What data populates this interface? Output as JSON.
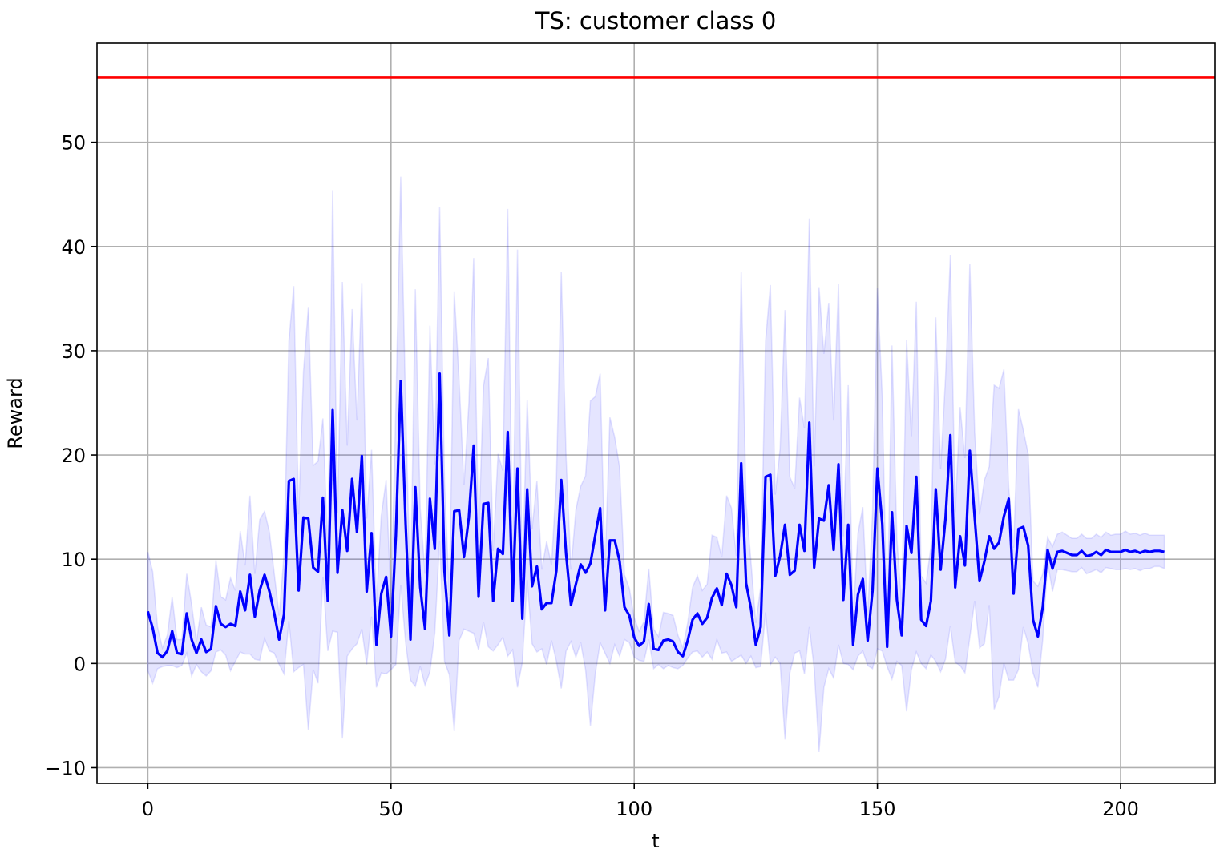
{
  "chart_data": {
    "type": "line",
    "title": "TS: customer class 0",
    "xlabel": "t",
    "ylabel": "Reward",
    "xlim": [
      -10.45,
      219.45
    ],
    "ylim": [
      -11.5,
      59.5
    ],
    "xticks": [
      0,
      50,
      100,
      150,
      200
    ],
    "xtick_labels": [
      "0",
      "50",
      "100",
      "150",
      "200"
    ],
    "yticks": [
      -10,
      0,
      10,
      20,
      30,
      40,
      50
    ],
    "ytick_labels": [
      "−10",
      "0",
      "10",
      "20",
      "30",
      "40",
      "50"
    ],
    "grid": true,
    "colors": {
      "mean": "#0000ff",
      "band": "#0000ff",
      "optimal": "#ff0000",
      "grid": "#b0b0b0"
    },
    "optimal_line": {
      "y": 56.2
    },
    "series": [
      {
        "x_start": 0,
        "mean": [
          5.0,
          3.4,
          1.0,
          0.6,
          1.2,
          3.1,
          1.0,
          0.9,
          4.8,
          2.3,
          1.0,
          2.3,
          1.1,
          1.4,
          5.5,
          3.8,
          3.5,
          3.8,
          3.6,
          6.9,
          5.1,
          8.5,
          4.5,
          7.0,
          8.5,
          6.9,
          4.8,
          2.3,
          4.7,
          17.5,
          17.7,
          7.0,
          14.0,
          13.9,
          9.2,
          8.8,
          15.9,
          6.0,
          24.3,
          8.7,
          14.7,
          10.8,
          17.7,
          12.6,
          19.9,
          6.9,
          12.5,
          1.8,
          6.7,
          8.3,
          2.6,
          12.3,
          27.1,
          13.4,
          2.3,
          16.9,
          7.3,
          3.3,
          15.8,
          11.0,
          27.8,
          8.8,
          2.7,
          14.6,
          14.7,
          10.2,
          14.0,
          20.9,
          6.4,
          15.3,
          15.4,
          6.0,
          11.0,
          10.5,
          22.2,
          6.0,
          18.7,
          4.3,
          16.7,
          7.4,
          9.3,
          5.2,
          5.8,
          5.8,
          8.9,
          17.6,
          10.5,
          5.6,
          7.6,
          9.5,
          8.7,
          9.6,
          12.3,
          14.9,
          5.1,
          11.8,
          11.8,
          9.8,
          5.4,
          4.6,
          2.5,
          1.7,
          2.1,
          5.7,
          1.4,
          1.3,
          2.2,
          2.3,
          2.1,
          1.1,
          0.7,
          2.2,
          4.2,
          4.8,
          3.8,
          4.4,
          6.3,
          7.2,
          5.6,
          8.6,
          7.5,
          5.4,
          19.2,
          7.7,
          5.3,
          1.8,
          3.5,
          17.9,
          18.1,
          8.4,
          10.3,
          13.3,
          8.5,
          8.9,
          13.3,
          10.8,
          23.1,
          9.2,
          13.9,
          13.7,
          17.1,
          10.9,
          19.1,
          6.1,
          13.3,
          1.8,
          6.6,
          8.1,
          2.2,
          7.0,
          18.7,
          13.4,
          1.6,
          14.5,
          6.1,
          2.7,
          13.2,
          10.6,
          17.9,
          4.2,
          3.6,
          6.0,
          16.7,
          9.0,
          13.9,
          21.9,
          7.3,
          12.2,
          9.4,
          20.4,
          14.0,
          7.9,
          9.8,
          12.2,
          11.0,
          11.6,
          14.1,
          15.8,
          6.7,
          12.9,
          13.1,
          11.3,
          4.2,
          2.6,
          5.4,
          10.9,
          9.1,
          10.7,
          10.8,
          10.6,
          10.4,
          10.4,
          10.8,
          10.3,
          10.4,
          10.7,
          10.4,
          10.9,
          10.7,
          10.7,
          10.7,
          10.9,
          10.7,
          10.8,
          10.6,
          10.8,
          10.7,
          10.8,
          10.8,
          10.7
        ],
        "upper": [
          10.7,
          8.8,
          3.5,
          1.5,
          2.7,
          6.4,
          2.3,
          2.3,
          8.6,
          5.7,
          2.1,
          5.4,
          3.7,
          3.5,
          9.9,
          6.4,
          6.1,
          8.2,
          7.0,
          12.7,
          9.4,
          16.1,
          8.6,
          13.8,
          14.6,
          12.6,
          8.6,
          4.6,
          10.4,
          30.9,
          36.2,
          14.3,
          28.0,
          34.2,
          19.0,
          19.4,
          23.5,
          10.8,
          45.4,
          14.4,
          36.6,
          20.9,
          34.0,
          23.3,
          36.5,
          13.9,
          20.5,
          5.9,
          14.2,
          17.6,
          5.8,
          24.7,
          46.7,
          24.8,
          6.2,
          35.9,
          14.9,
          8.6,
          32.4,
          19.1,
          43.8,
          17.4,
          6.5,
          35.7,
          27.2,
          17.1,
          24.9,
          38.9,
          11.6,
          26.6,
          29.3,
          10.8,
          20.1,
          18.5,
          43.6,
          10.6,
          39.7,
          8.4,
          25.3,
          12.9,
          17.5,
          9.0,
          11.7,
          9.4,
          17.6,
          37.6,
          19.8,
          9.0,
          14.7,
          17.0,
          18.0,
          25.2,
          25.6,
          27.8,
          9.2,
          23.6,
          21.7,
          18.8,
          8.5,
          7.2,
          4.4,
          3.1,
          4.0,
          9.1,
          3.3,
          2.6,
          4.9,
          4.8,
          4.6,
          2.7,
          1.5,
          3.9,
          7.3,
          8.4,
          7.0,
          7.6,
          12.3,
          12.1,
          10.2,
          16.1,
          14.9,
          10.3,
          37.6,
          15.4,
          9.8,
          3.9,
          7.3,
          30.9,
          36.3,
          16.2,
          20.6,
          33.9,
          17.9,
          16.8,
          25.5,
          22.6,
          42.7,
          18.9,
          36.1,
          29.7,
          34.6,
          23.3,
          36.4,
          12.2,
          26.7,
          4.3,
          12.5,
          15.0,
          4.6,
          14.5,
          36.0,
          25.6,
          3.5,
          30.5,
          12.0,
          5.6,
          31.0,
          21.8,
          34.7,
          8.4,
          7.7,
          11.2,
          33.2,
          18.7,
          27.4,
          39.2,
          14.5,
          24.6,
          19.7,
          38.3,
          22.2,
          14.3,
          17.6,
          18.9,
          26.7,
          26.4,
          28.2,
          16.9,
          11.1,
          24.4,
          22.4,
          20.1,
          7.9,
          7.4,
          8.6,
          12.1,
          11.2,
          12.4,
          12.6,
          12.3,
          12.0,
          12.0,
          12.4,
          12.0,
          12.0,
          12.4,
          12.1,
          12.6,
          12.3,
          12.4,
          12.4,
          12.7,
          12.4,
          12.5,
          12.3,
          12.5,
          12.3,
          12.3,
          12.3,
          12.3
        ],
        "lower": [
          -0.7,
          -1.9,
          -0.5,
          -0.3,
          -0.2,
          -0.2,
          -0.4,
          -0.2,
          1.0,
          -1.2,
          -0.1,
          -0.8,
          -1.2,
          -0.7,
          1.1,
          1.3,
          0.8,
          -0.7,
          0.2,
          1.1,
          0.9,
          0.9,
          0.4,
          0.3,
          2.4,
          1.2,
          1.0,
          -0.1,
          -1.0,
          4.1,
          -0.8,
          -0.4,
          -0.1,
          -6.4,
          -0.6,
          -1.9,
          8.3,
          1.2,
          3.1,
          3.0,
          -7.2,
          0.7,
          1.4,
          1.9,
          3.3,
          -0.1,
          4.5,
          -2.3,
          -0.9,
          -1.0,
          -0.6,
          -0.1,
          7.5,
          2.0,
          -1.6,
          -2.2,
          -0.3,
          -2.1,
          -0.8,
          2.9,
          11.8,
          0.2,
          -1.1,
          -6.5,
          2.2,
          3.3,
          3.1,
          2.9,
          1.3,
          4.0,
          1.6,
          1.2,
          1.8,
          2.5,
          0.7,
          1.3,
          -2.3,
          0.1,
          8.0,
          1.9,
          1.1,
          1.4,
          -0.1,
          2.2,
          0.2,
          -2.4,
          1.2,
          2.1,
          0.6,
          2.0,
          -0.6,
          -6.0,
          -1.0,
          2.0,
          1.0,
          0.0,
          1.8,
          0.7,
          2.3,
          2.0,
          0.6,
          0.3,
          0.2,
          2.3,
          -0.5,
          -0.1,
          -0.5,
          -0.2,
          -0.4,
          -0.5,
          -0.2,
          0.5,
          1.1,
          1.2,
          0.6,
          1.1,
          0.4,
          2.3,
          1.0,
          1.1,
          0.2,
          0.5,
          0.8,
          0.0,
          0.7,
          -0.4,
          -0.3,
          4.9,
          -0.1,
          0.6,
          0.0,
          -7.3,
          -0.9,
          1.0,
          1.2,
          -1.0,
          3.5,
          -0.5,
          -8.5,
          -2.3,
          -0.5,
          -1.4,
          1.8,
          0.0,
          -0.1,
          -0.6,
          0.7,
          1.2,
          -0.2,
          -0.5,
          1.4,
          1.2,
          -0.3,
          -1.5,
          0.2,
          -0.2,
          -4.6,
          -0.6,
          1.1,
          0.0,
          -0.5,
          0.8,
          0.2,
          -0.8,
          0.4,
          3.6,
          0.1,
          -0.2,
          -0.9,
          2.5,
          6.0,
          1.5,
          1.9,
          5.6,
          -4.4,
          -3.2,
          0.0,
          -1.6,
          -1.6,
          -0.6,
          3.5,
          1.9,
          -0.9,
          -2.3,
          2.3,
          9.7,
          6.9,
          9.0,
          9.0,
          8.9,
          8.8,
          8.8,
          9.2,
          8.6,
          8.8,
          9.0,
          8.7,
          9.2,
          9.1,
          9.0,
          9.0,
          9.1,
          9.0,
          9.1,
          8.9,
          9.1,
          9.1,
          9.3,
          9.3,
          9.1
        ]
      }
    ]
  }
}
